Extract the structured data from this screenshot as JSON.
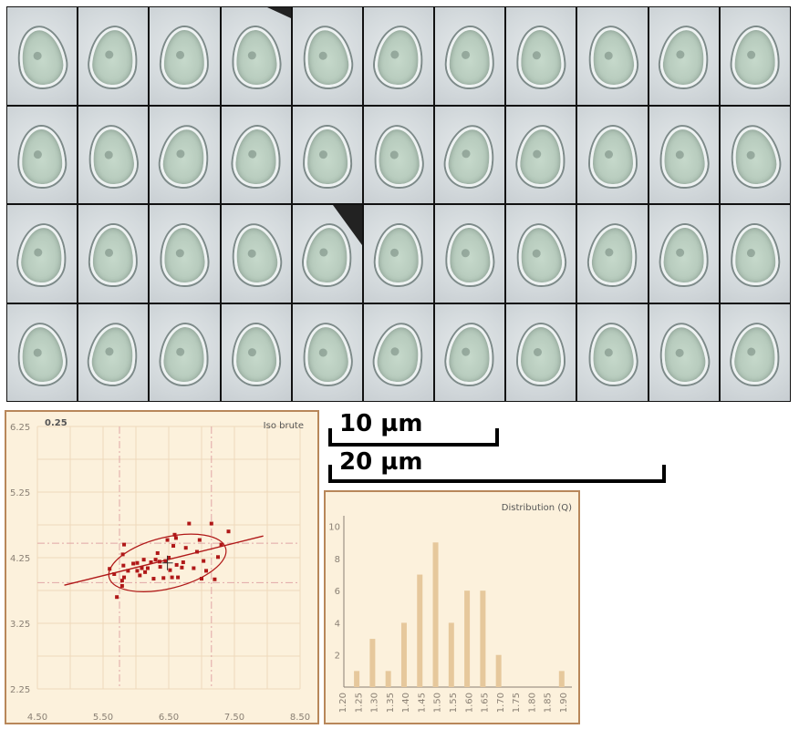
{
  "mosaic": {
    "rows": 4,
    "cols": 11
  },
  "scale": {
    "bar10_label": "10 µm",
    "bar20_label": "20 µm"
  },
  "chart_data": [
    {
      "type": "scatter",
      "title": "Iso brute",
      "corner_label": "0.25",
      "xlim": [
        4.5,
        8.5
      ],
      "ylim": [
        2.25,
        6.25
      ],
      "x_ticks": [
        "4.50",
        "5.50",
        "6.50",
        "7.50",
        "8.50"
      ],
      "y_ticks": [
        "6.25",
        "5.25",
        "4.25",
        "3.25",
        "2.25"
      ],
      "grid": true,
      "colors": {
        "points": "#b01818",
        "fit": "#b01818",
        "grid": "#eed9bb",
        "guides": "#e0a6a6",
        "background": "#fcf1dc"
      },
      "points": [
        [
          5.71,
          3.65
        ],
        [
          5.79,
          3.82
        ],
        [
          5.79,
          3.9
        ],
        [
          5.82,
          3.95
        ],
        [
          5.67,
          4.0
        ],
        [
          5.88,
          4.05
        ],
        [
          5.81,
          4.13
        ],
        [
          5.8,
          4.3
        ],
        [
          5.82,
          4.45
        ],
        [
          6.02,
          4.05
        ],
        [
          6.06,
          3.98
        ],
        [
          6.09,
          4.09
        ],
        [
          6.12,
          4.22
        ],
        [
          6.18,
          4.09
        ],
        [
          6.23,
          4.18
        ],
        [
          6.27,
          3.93
        ],
        [
          6.3,
          4.22
        ],
        [
          6.33,
          4.32
        ],
        [
          6.37,
          4.11
        ],
        [
          6.42,
          3.94
        ],
        [
          6.45,
          4.2
        ],
        [
          6.5,
          4.25
        ],
        [
          6.52,
          4.06
        ],
        [
          6.55,
          3.95
        ],
        [
          6.57,
          4.43
        ],
        [
          6.59,
          4.6
        ],
        [
          6.62,
          4.14
        ],
        [
          6.64,
          3.95
        ],
        [
          6.7,
          4.1
        ],
        [
          6.72,
          4.18
        ],
        [
          6.76,
          4.4
        ],
        [
          6.81,
          4.77
        ],
        [
          6.88,
          4.09
        ],
        [
          6.93,
          4.34
        ],
        [
          6.97,
          4.52
        ],
        [
          7.0,
          3.93
        ],
        [
          7.03,
          4.2
        ],
        [
          7.07,
          4.05
        ],
        [
          7.15,
          4.77
        ],
        [
          7.25,
          4.26
        ],
        [
          7.3,
          4.45
        ],
        [
          7.41,
          4.65
        ],
        [
          5.96,
          4.16
        ],
        [
          6.14,
          4.03
        ],
        [
          6.48,
          4.52
        ],
        [
          5.6,
          4.08
        ],
        [
          7.2,
          3.92
        ],
        [
          6.02,
          4.17
        ],
        [
          6.36,
          4.19
        ],
        [
          6.61,
          4.55
        ]
      ],
      "mean": [
        6.48,
        4.17
      ],
      "fit_line": {
        "x": [
          4.91,
          7.94
        ],
        "y": [
          3.83,
          4.58
        ]
      },
      "ellipse": {
        "center": [
          6.48,
          4.17
        ],
        "semi_axis_x_units": 1.83,
        "semi_axis_y_units": 0.39,
        "angle_deg": 14
      },
      "guides": {
        "x": [
          5.75,
          7.15
        ],
        "y": [
          3.87,
          4.47
        ]
      }
    },
    {
      "type": "bar",
      "title": "Distribution (Q)",
      "categories": [
        "1.20",
        "1.25",
        "1.30",
        "1.35",
        "1.40",
        "1.45",
        "1.50",
        "1.55",
        "1.60",
        "1.65",
        "1.70",
        "1.75",
        "1.80",
        "1.85",
        "1.90"
      ],
      "y_ticks": [
        "10",
        "8",
        "6",
        "4",
        "2"
      ],
      "ylim": [
        0,
        11
      ],
      "colors": {
        "bars": "#e6c89c",
        "axes": "#8a8074",
        "background": "#fcf1dc"
      },
      "bars": [
        {
          "x": 1.235,
          "value": 1
        },
        {
          "x": 1.285,
          "value": 3
        },
        {
          "x": 1.335,
          "value": 1
        },
        {
          "x": 1.385,
          "value": 4
        },
        {
          "x": 1.435,
          "value": 7
        },
        {
          "x": 1.485,
          "value": 9
        },
        {
          "x": 1.535,
          "value": 4
        },
        {
          "x": 1.585,
          "value": 6
        },
        {
          "x": 1.635,
          "value": 6
        },
        {
          "x": 1.685,
          "value": 2
        },
        {
          "x": 1.885,
          "value": 1
        }
      ]
    }
  ]
}
